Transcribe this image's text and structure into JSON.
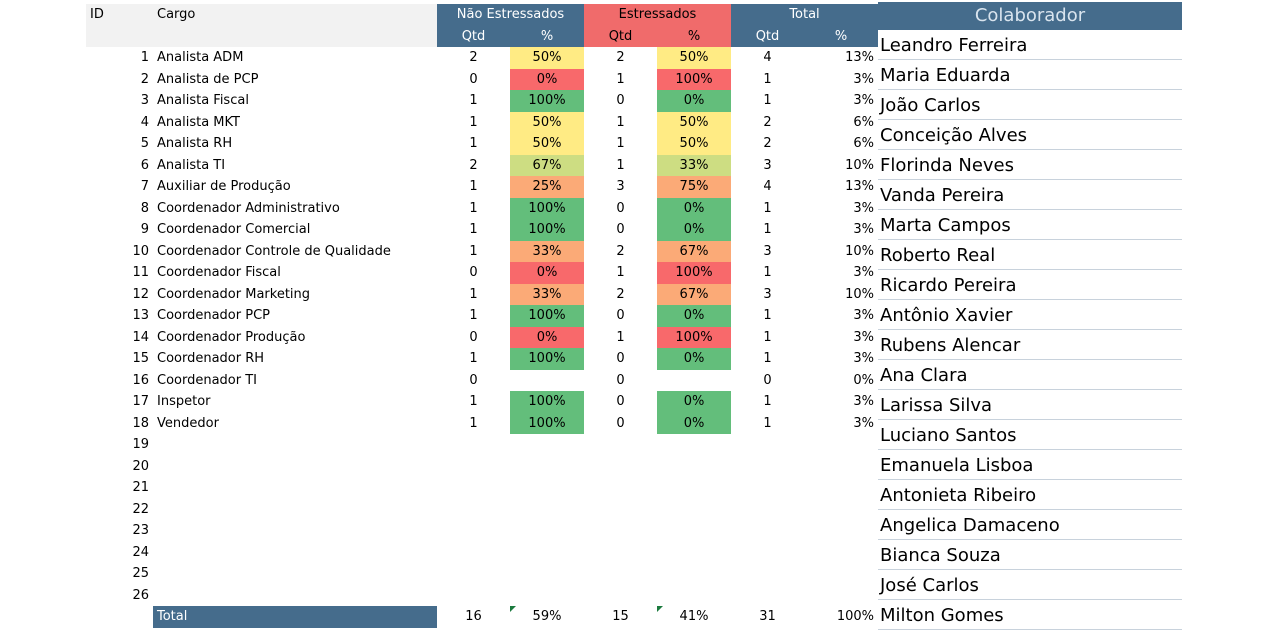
{
  "headers": {
    "id": "ID",
    "cargo": "Cargo",
    "nao_estressados": "Não Estressados",
    "estressados": "Estressados",
    "total": "Total",
    "qtd": "Qtd",
    "pct": "%"
  },
  "colors": {
    "header_blue": "#456c8c",
    "header_red": "#f06b6b",
    "green": "#63be7b",
    "yellow": "#ffeb84",
    "red": "#f8696b",
    "orange": "#fbaa77",
    "light_green": "#cddd82"
  },
  "rows": [
    {
      "id": "1",
      "cargo": "Analista ADM",
      "nq": "2",
      "np": "50%",
      "nc": "y",
      "eq": "2",
      "ep": "50%",
      "ec": "y",
      "tq": "4",
      "tp": "13%"
    },
    {
      "id": "2",
      "cargo": "Analista de PCP",
      "nq": "0",
      "np": "0%",
      "nc": "rd",
      "eq": "1",
      "ep": "100%",
      "ec": "rd",
      "tq": "1",
      "tp": "3%"
    },
    {
      "id": "3",
      "cargo": "Analista Fiscal",
      "nq": "1",
      "np": "100%",
      "nc": "g",
      "eq": "0",
      "ep": "0%",
      "ec": "g",
      "tq": "1",
      "tp": "3%"
    },
    {
      "id": "4",
      "cargo": "Analista MKT",
      "nq": "1",
      "np": "50%",
      "nc": "y",
      "eq": "1",
      "ep": "50%",
      "ec": "y",
      "tq": "2",
      "tp": "6%"
    },
    {
      "id": "5",
      "cargo": "Analista RH",
      "nq": "1",
      "np": "50%",
      "nc": "y",
      "eq": "1",
      "ep": "50%",
      "ec": "y",
      "tq": "2",
      "tp": "6%"
    },
    {
      "id": "6",
      "cargo": "Analista TI",
      "nq": "2",
      "np": "67%",
      "nc": "lg",
      "eq": "1",
      "ep": "33%",
      "ec": "lg",
      "tq": "3",
      "tp": "10%"
    },
    {
      "id": "7",
      "cargo": "Auxiliar de Produção",
      "nq": "1",
      "np": "25%",
      "nc": "o",
      "eq": "3",
      "ep": "75%",
      "ec": "o",
      "tq": "4",
      "tp": "13%"
    },
    {
      "id": "8",
      "cargo": "Coordenador Administrativo",
      "nq": "1",
      "np": "100%",
      "nc": "g",
      "eq": "0",
      "ep": "0%",
      "ec": "g",
      "tq": "1",
      "tp": "3%"
    },
    {
      "id": "9",
      "cargo": "Coordenador Comercial",
      "nq": "1",
      "np": "100%",
      "nc": "g",
      "eq": "0",
      "ep": "0%",
      "ec": "g",
      "tq": "1",
      "tp": "3%"
    },
    {
      "id": "10",
      "cargo": "Coordenador Controle de Qualidade",
      "nq": "1",
      "np": "33%",
      "nc": "o",
      "eq": "2",
      "ep": "67%",
      "ec": "o",
      "tq": "3",
      "tp": "10%"
    },
    {
      "id": "11",
      "cargo": "Coordenador Fiscal",
      "nq": "0",
      "np": "0%",
      "nc": "rd",
      "eq": "1",
      "ep": "100%",
      "ec": "rd",
      "tq": "1",
      "tp": "3%"
    },
    {
      "id": "12",
      "cargo": "Coordenador Marketing",
      "nq": "1",
      "np": "33%",
      "nc": "o",
      "eq": "2",
      "ep": "67%",
      "ec": "o",
      "tq": "3",
      "tp": "10%"
    },
    {
      "id": "13",
      "cargo": "Coordenador PCP",
      "nq": "1",
      "np": "100%",
      "nc": "g",
      "eq": "0",
      "ep": "0%",
      "ec": "g",
      "tq": "1",
      "tp": "3%"
    },
    {
      "id": "14",
      "cargo": "Coordenador Produção",
      "nq": "0",
      "np": "0%",
      "nc": "rd",
      "eq": "1",
      "ep": "100%",
      "ec": "rd",
      "tq": "1",
      "tp": "3%"
    },
    {
      "id": "15",
      "cargo": "Coordenador RH",
      "nq": "1",
      "np": "100%",
      "nc": "g",
      "eq": "0",
      "ep": "0%",
      "ec": "g",
      "tq": "1",
      "tp": "3%"
    },
    {
      "id": "16",
      "cargo": "Coordenador TI",
      "nq": "0",
      "np": "",
      "nc": "",
      "eq": "0",
      "ep": "",
      "ec": "",
      "tq": "0",
      "tp": "0%"
    },
    {
      "id": "17",
      "cargo": "Inspetor",
      "nq": "1",
      "np": "100%",
      "nc": "g",
      "eq": "0",
      "ep": "0%",
      "ec": "g",
      "tq": "1",
      "tp": "3%"
    },
    {
      "id": "18",
      "cargo": "Vendedor",
      "nq": "1",
      "np": "100%",
      "nc": "g",
      "eq": "0",
      "ep": "0%",
      "ec": "g",
      "tq": "1",
      "tp": "3%"
    },
    {
      "id": "19",
      "cargo": "",
      "nq": "",
      "np": "",
      "nc": "",
      "eq": "",
      "ep": "",
      "ec": "",
      "tq": "",
      "tp": ""
    },
    {
      "id": "20",
      "cargo": "",
      "nq": "",
      "np": "",
      "nc": "",
      "eq": "",
      "ep": "",
      "ec": "",
      "tq": "",
      "tp": ""
    },
    {
      "id": "21",
      "cargo": "",
      "nq": "",
      "np": "",
      "nc": "",
      "eq": "",
      "ep": "",
      "ec": "",
      "tq": "",
      "tp": ""
    },
    {
      "id": "22",
      "cargo": "",
      "nq": "",
      "np": "",
      "nc": "",
      "eq": "",
      "ep": "",
      "ec": "",
      "tq": "",
      "tp": ""
    },
    {
      "id": "23",
      "cargo": "",
      "nq": "",
      "np": "",
      "nc": "",
      "eq": "",
      "ep": "",
      "ec": "",
      "tq": "",
      "tp": ""
    },
    {
      "id": "24",
      "cargo": "",
      "nq": "",
      "np": "",
      "nc": "",
      "eq": "",
      "ep": "",
      "ec": "",
      "tq": "",
      "tp": ""
    },
    {
      "id": "25",
      "cargo": "",
      "nq": "",
      "np": "",
      "nc": "",
      "eq": "",
      "ep": "",
      "ec": "",
      "tq": "",
      "tp": ""
    },
    {
      "id": "26",
      "cargo": "",
      "nq": "",
      "np": "",
      "nc": "",
      "eq": "",
      "ep": "",
      "ec": "",
      "tq": "",
      "tp": ""
    }
  ],
  "totals": {
    "label": "Total",
    "nq": "16",
    "np": "59%",
    "eq": "15",
    "ep": "41%",
    "tq": "31",
    "tp": "100%"
  },
  "colaboradores": {
    "header": "Colaborador",
    "names": [
      "Leandro Ferreira",
      "Maria Eduarda",
      "João Carlos",
      "Conceição Alves",
      "Florinda Neves",
      "Vanda Pereira",
      "Marta Campos",
      "Roberto Real",
      "Ricardo Pereira",
      "Antônio Xavier",
      "Rubens Alencar",
      "Ana Clara",
      "Larissa Silva",
      "Luciano Santos",
      "Emanuela Lisboa",
      "Antonieta Ribeiro",
      "Angelica Damaceno",
      "Bianca Souza",
      "José Carlos",
      "Milton Gomes"
    ]
  }
}
